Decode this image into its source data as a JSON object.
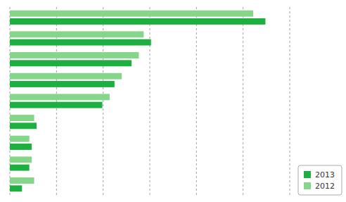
{
  "chart_data": {
    "type": "bar",
    "orientation": "horizontal",
    "categories": [
      null,
      null,
      null,
      null,
      null,
      null,
      null,
      null,
      null
    ],
    "series": [
      {
        "name": "2013",
        "color": "#1db040",
        "values": [
          105,
          58,
          50,
          43,
          38,
          11,
          9,
          8,
          5
        ]
      },
      {
        "name": "2012",
        "color": "#85d68a",
        "values": [
          100,
          55,
          53,
          46,
          41,
          10,
          8,
          9,
          10
        ]
      }
    ],
    "xlim": [
      0,
      115
    ],
    "xticks": [
      0,
      19.166666666666668,
      38.333333333333336,
      57.5,
      76.66666666666667,
      95.83333333333334,
      115
    ],
    "grid": true,
    "legend": "lower right",
    "tick_labels": false
  }
}
